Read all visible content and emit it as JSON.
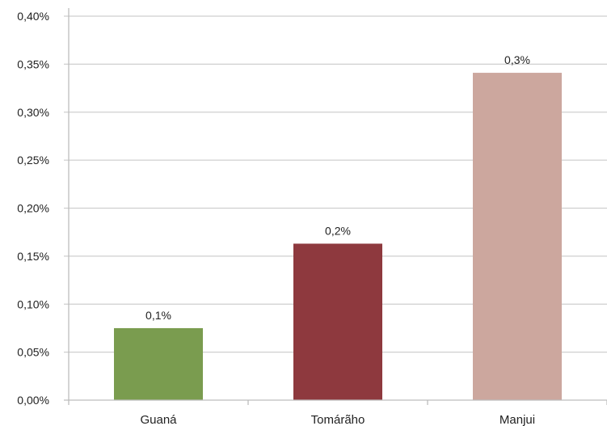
{
  "chart_data": {
    "type": "bar",
    "categories": [
      "Guaná",
      "Tomárãho",
      "Manjui"
    ],
    "values": [
      0.075,
      0.163,
      0.341
    ],
    "data_labels": [
      "0,1%",
      "0,2%",
      "0,3%"
    ],
    "colors": [
      "#7a9c4f",
      "#8e393e",
      "#cca79e"
    ],
    "y_ticks": [
      0,
      0.05,
      0.1,
      0.15,
      0.2,
      0.25,
      0.3,
      0.35,
      0.4
    ],
    "y_tick_labels": [
      "0,00%",
      "0,05%",
      "0,10%",
      "0,15%",
      "0,20%",
      "0,25%",
      "0,30%",
      "0,35%",
      "0,40%"
    ],
    "ylim": [
      0,
      0.4
    ],
    "unit": "%",
    "grid": true,
    "legend": "none",
    "title": "",
    "xlabel": "",
    "ylabel": ""
  }
}
